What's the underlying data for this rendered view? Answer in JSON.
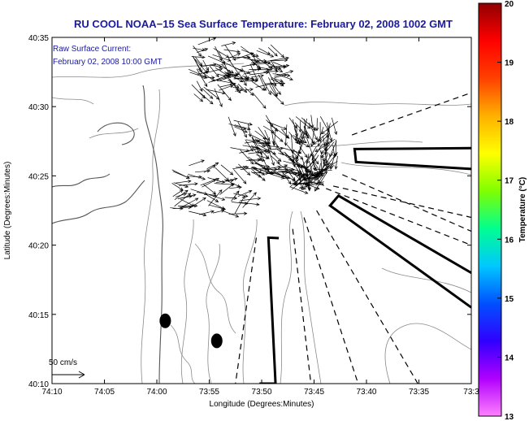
{
  "chart_data": {
    "type": "vector-field-map",
    "title": "RU COOL  NOAA−15  Sea Surface Temperature:  February 02, 2008 1002 GMT",
    "annotation_lines": [
      "Raw Surface Current:",
      "February 02, 2008 10:00 GMT"
    ],
    "xlabel": "Longitude (Degrees:Minutes)",
    "ylabel": "Latitude (Degrees:Minutes)",
    "x_ticks": [
      {
        "value": -74.1667,
        "label": "74:10"
      },
      {
        "value": -74.0833,
        "label": "74:05"
      },
      {
        "value": -74.0,
        "label": "74:00"
      },
      {
        "value": -73.9167,
        "label": "73:55"
      },
      {
        "value": -73.8333,
        "label": "73:50"
      },
      {
        "value": -73.75,
        "label": "73:45"
      },
      {
        "value": -73.6667,
        "label": "73:40"
      },
      {
        "value": -73.5833,
        "label": "73:35"
      },
      {
        "value": -73.5,
        "label": "73:3"
      }
    ],
    "y_ticks": [
      {
        "value": 40.1667,
        "label": "40:10"
      },
      {
        "value": 40.25,
        "label": "40:15"
      },
      {
        "value": 40.3333,
        "label": "40:20"
      },
      {
        "value": 40.4167,
        "label": "40:25"
      },
      {
        "value": 40.5,
        "label": "40:30"
      },
      {
        "value": 40.5833,
        "label": "40:35"
      }
    ],
    "xlim": [
      -74.1667,
      -73.5
    ],
    "ylim": [
      40.1667,
      40.5833
    ],
    "scale_arrow_label": "50 cm/s",
    "colorbar": {
      "label": "Temperature (°C)",
      "range": [
        13,
        20
      ],
      "ticks": [
        "13",
        "14",
        "15",
        "16",
        "17",
        "18",
        "19",
        "20"
      ],
      "colors": [
        "#ff80ff",
        "#b000ff",
        "#3000ff",
        "#0050ff",
        "#00c8ff",
        "#00ff90",
        "#80ff00",
        "#ffff00",
        "#ffb000",
        "#ff4000",
        "#ff0000",
        "#900000"
      ]
    },
    "current_cluster_centers": [
      {
        "lon": -73.88,
        "lat": 40.545,
        "spread_lon": 0.07,
        "spread_lat": 0.03,
        "count": 120
      },
      {
        "lon": -73.8,
        "lat": 40.455,
        "spread_lon": 0.09,
        "spread_lat": 0.035,
        "count": 170
      },
      {
        "lon": -73.92,
        "lat": 40.4,
        "spread_lon": 0.06,
        "spread_lat": 0.03,
        "count": 60
      },
      {
        "lon": -73.76,
        "lat": 40.42,
        "spread_lon": 0.03,
        "spread_lat": 0.02,
        "count": 40
      }
    ],
    "buoys": [
      {
        "name": "buoy-west",
        "lon": -73.9866,
        "lat": 40.2422
      },
      {
        "name": "buoy-east",
        "lon": -73.9047,
        "lat": 40.2182
      }
    ],
    "shipping_lanes": [
      {
        "name": "lane-north",
        "lon": [
          -73.5,
          -73.6856,
          -73.6833,
          -73.5
        ],
        "lat": [
          40.45,
          40.449,
          40.4333,
          40.425
        ]
      },
      {
        "name": "lane-east",
        "lon": [
          -73.5,
          -73.7246,
          -73.7111,
          -73.5
        ],
        "lat": [
          40.2583,
          40.3809,
          40.3928,
          40.3
        ]
      },
      {
        "name": "lane-south",
        "lon": [
          -73.8369,
          -73.8113,
          -73.8226,
          -73.8061
        ],
        "lat": [
          40.1667,
          40.1667,
          40.3423,
          40.3417
        ]
      }
    ],
    "dashed_boundaries": [
      {
        "lon": [
          -73.6898,
          -73.5
        ],
        "lat": [
          40.4659,
          40.5167
        ]
      },
      {
        "lon": [
          -73.705,
          -73.5
        ],
        "lat": [
          40.4181,
          40.35
        ]
      },
      {
        "lon": [
          -73.7195,
          -73.5
        ],
        "lat": [
          40.4044,
          40.3667
        ]
      },
      {
        "lon": [
          -73.731,
          -73.5
        ],
        "lat": [
          40.4015,
          40.3333
        ]
      },
      {
        "lon": [
          -73.8418,
          -73.875
        ],
        "lat": [
          40.3423,
          40.1667
        ]
      },
      {
        "lon": [
          -73.784,
          -73.755
        ],
        "lat": [
          40.3528,
          40.1667
        ]
      },
      {
        "lon": [
          -73.766,
          -73.68
        ],
        "lat": [
          40.3666,
          40.1667
        ]
      },
      {
        "lon": [
          -73.746,
          -73.585
        ],
        "lat": [
          40.375,
          40.1667
        ]
      }
    ]
  }
}
